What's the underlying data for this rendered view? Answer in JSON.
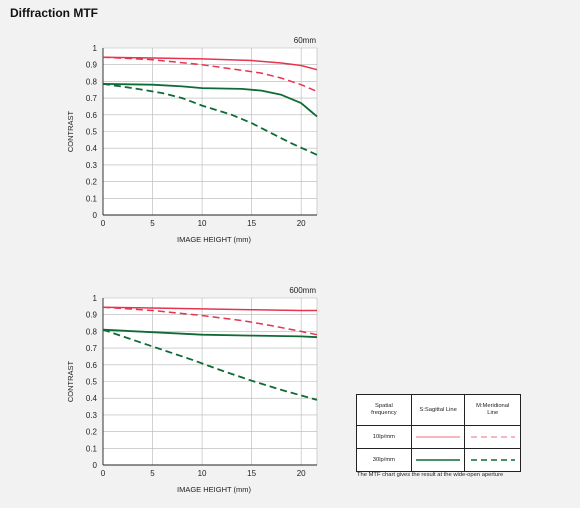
{
  "page": {
    "title": "Diffraction MTF"
  },
  "colors": {
    "red_10lp": "#e8334f",
    "red_10lp_dash": "#e8334f",
    "green_30lp": "#0f6b35",
    "green_30lp_dash": "#0f6b35",
    "plot_bg": "#ffffff",
    "grid": "#b5b5b5"
  },
  "chart_data": [
    {
      "type": "line",
      "title": "60mm",
      "xlabel": "IMAGE HEIGHT (mm)",
      "ylabel": "CONTRAST",
      "xlim": [
        0,
        21.6
      ],
      "ylim": [
        0,
        1
      ],
      "xticks": [
        0,
        5,
        10,
        15,
        20
      ],
      "yticks": [
        0,
        0.1,
        0.2,
        0.3,
        0.4,
        0.5,
        0.6,
        0.7,
        0.8,
        0.9,
        1
      ],
      "ytick_labels": [
        "0",
        "0.1",
        "0.2",
        "0.3",
        "0.4",
        "0.5",
        "0.6",
        "0.7",
        "0.8",
        "0.9",
        "1"
      ],
      "grid": true,
      "series": [
        {
          "key": "s10",
          "x": [
            0,
            5,
            10,
            15,
            18,
            20,
            21.6
          ],
          "values": [
            0.945,
            0.94,
            0.935,
            0.925,
            0.91,
            0.895,
            0.87
          ]
        },
        {
          "key": "m10",
          "x": [
            0,
            5,
            10,
            13,
            16,
            18,
            20,
            21.6
          ],
          "values": [
            0.945,
            0.93,
            0.9,
            0.875,
            0.85,
            0.82,
            0.78,
            0.74
          ]
        },
        {
          "key": "s30",
          "x": [
            0,
            5,
            8,
            10,
            14,
            16,
            18,
            20,
            21,
            21.6
          ],
          "values": [
            0.785,
            0.78,
            0.77,
            0.76,
            0.755,
            0.745,
            0.72,
            0.67,
            0.62,
            0.59
          ]
        },
        {
          "key": "m30",
          "x": [
            0,
            3,
            6,
            8,
            10,
            13,
            15,
            17,
            19,
            21.6
          ],
          "values": [
            0.785,
            0.76,
            0.73,
            0.7,
            0.655,
            0.6,
            0.55,
            0.49,
            0.43,
            0.36
          ]
        }
      ]
    },
    {
      "type": "line",
      "title": "600mm",
      "xlabel": "IMAGE HEIGHT (mm)",
      "ylabel": "CONTRAST",
      "xlim": [
        0,
        21.6
      ],
      "ylim": [
        0,
        1
      ],
      "xticks": [
        0,
        5,
        10,
        15,
        20
      ],
      "yticks": [
        0,
        0.1,
        0.2,
        0.3,
        0.4,
        0.5,
        0.6,
        0.7,
        0.8,
        0.9,
        1
      ],
      "ytick_labels": [
        "0",
        "0.1",
        "0.2",
        "0.3",
        "0.4",
        "0.5",
        "0.6",
        "0.7",
        "0.8",
        "0.9",
        "1"
      ],
      "grid": true,
      "series": [
        {
          "key": "s10",
          "x": [
            0,
            5,
            10,
            15,
            20,
            21.6
          ],
          "values": [
            0.945,
            0.94,
            0.935,
            0.93,
            0.925,
            0.925
          ]
        },
        {
          "key": "m10",
          "x": [
            0,
            5,
            10,
            14,
            17,
            20,
            21.6
          ],
          "values": [
            0.945,
            0.925,
            0.895,
            0.865,
            0.835,
            0.8,
            0.78
          ]
        },
        {
          "key": "s30",
          "x": [
            0,
            5,
            10,
            15,
            20,
            21.6
          ],
          "values": [
            0.81,
            0.795,
            0.78,
            0.775,
            0.77,
            0.765
          ]
        },
        {
          "key": "m30",
          "x": [
            0,
            3,
            6,
            9,
            12,
            15,
            18,
            21.6
          ],
          "values": [
            0.81,
            0.75,
            0.69,
            0.63,
            0.565,
            0.505,
            0.45,
            0.39
          ]
        }
      ]
    }
  ],
  "legend": {
    "col1_header_line1": "Spatial",
    "col1_header_line2": "frequency",
    "col2_header": "S:Sagittal Line",
    "col3_header_line1": "M:Meridional",
    "col3_header_line2": "Line",
    "row1_label": "10lp/mm",
    "row2_label": "30lp/mm"
  },
  "footnote": "The MTF chart gives the result at the wide-open aperture"
}
